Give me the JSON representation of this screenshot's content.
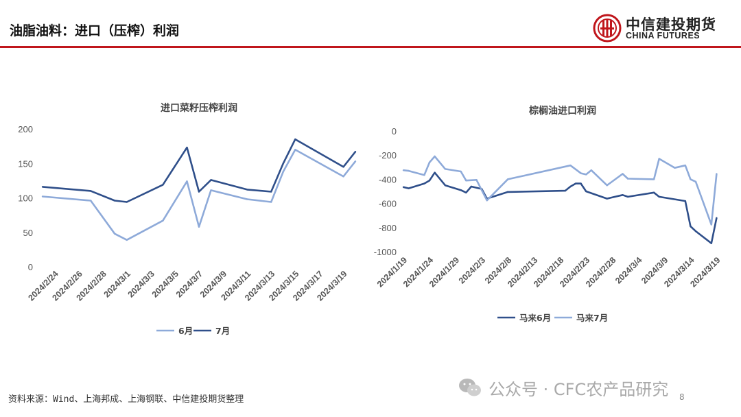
{
  "header": {
    "title": "油脂油料：进口（压榨）利润"
  },
  "logo": {
    "cn": "中信建投期货",
    "en": "CHINA FUTURES"
  },
  "footer": {
    "source": "资料来源：Wind、上海邦成、上海钢联、中信建投期货整理",
    "page": "8"
  },
  "watermark": {
    "text": "公众号 · CFC农产品研究",
    "icon": "wechat-icon"
  },
  "colors": {
    "accent": "#c0161c",
    "dark_series": "#2f4f8a",
    "light_series": "#8eaad9"
  },
  "chart_data": [
    {
      "type": "line",
      "title": "进口菜籽压榨利润",
      "ylim": [
        0,
        200
      ],
      "yticks": [
        0,
        50,
        100,
        150,
        200
      ],
      "xlim": [
        "2024/2/23",
        "2024/3/20"
      ],
      "xticks": [
        "2024/2/24",
        "2024/2/26",
        "2024/2/28",
        "2024/3/1",
        "2024/3/3",
        "2024/3/5",
        "2024/3/7",
        "2024/3/9",
        "2024/3/11",
        "2024/3/13",
        "2024/3/15",
        "2024/3/17",
        "2024/3/19"
      ],
      "legend_position": "bottom",
      "series": [
        {
          "name": "6月",
          "color": "#8eaad9",
          "points": [
            [
              "2024/2/23",
              102
            ],
            [
              "2024/2/27",
              96
            ],
            [
              "2024/2/29",
              48
            ],
            [
              "2024/3/1",
              39
            ],
            [
              "2024/3/4",
              67
            ],
            [
              "2024/3/6",
              124
            ],
            [
              "2024/3/7",
              58
            ],
            [
              "2024/3/8",
              111
            ],
            [
              "2024/3/11",
              98
            ],
            [
              "2024/3/13",
              94
            ],
            [
              "2024/3/14",
              138
            ],
            [
              "2024/3/15",
              170
            ],
            [
              "2024/3/19",
              131
            ],
            [
              "2024/3/20",
              153
            ]
          ]
        },
        {
          "name": "7月",
          "color": "#2f4f8a",
          "points": [
            [
              "2024/2/23",
              116
            ],
            [
              "2024/2/27",
              110
            ],
            [
              "2024/2/29",
              96
            ],
            [
              "2024/3/1",
              94
            ],
            [
              "2024/3/4",
              119
            ],
            [
              "2024/3/6",
              173
            ],
            [
              "2024/3/7",
              109
            ],
            [
              "2024/3/8",
              126
            ],
            [
              "2024/3/11",
              112
            ],
            [
              "2024/3/13",
              109
            ],
            [
              "2024/3/14",
              150
            ],
            [
              "2024/3/15",
              185
            ],
            [
              "2024/3/19",
              145
            ],
            [
              "2024/3/20",
              167
            ]
          ]
        }
      ]
    },
    {
      "type": "line",
      "title": "棕榈油进口利润",
      "ylim": [
        -1000,
        0
      ],
      "yticks": [
        0,
        -200,
        -400,
        -600,
        -800,
        -1000
      ],
      "xlim": [
        "2024/1/19",
        "2024/3/20"
      ],
      "xticks": [
        "2024/1/19",
        "2024/1/24",
        "2024/1/29",
        "2024/2/3",
        "2024/2/8",
        "2024/2/13",
        "2024/2/18",
        "2024/2/23",
        "2024/2/28",
        "2024/3/4",
        "2024/3/9",
        "2024/3/14",
        "2024/3/19"
      ],
      "legend_position": "bottom",
      "series": [
        {
          "name": "马来6月",
          "color": "#2f4f8a",
          "points": [
            [
              "2024/1/19",
              -465
            ],
            [
              "2024/1/20",
              -475
            ],
            [
              "2024/1/23",
              -435
            ],
            [
              "2024/1/24",
              -410
            ],
            [
              "2024/1/25",
              -345
            ],
            [
              "2024/1/27",
              -450
            ],
            [
              "2024/1/30",
              -490
            ],
            [
              "2024/1/31",
              -510
            ],
            [
              "2024/2/1",
              -460
            ],
            [
              "2024/2/3",
              -480
            ],
            [
              "2024/2/4",
              -560
            ],
            [
              "2024/2/8",
              -505
            ],
            [
              "2024/2/19",
              -495
            ],
            [
              "2024/2/20",
              -460
            ],
            [
              "2024/2/21",
              -435
            ],
            [
              "2024/2/22",
              -435
            ],
            [
              "2024/2/23",
              -500
            ],
            [
              "2024/2/27",
              -560
            ],
            [
              "2024/3/1",
              -530
            ],
            [
              "2024/3/2",
              -545
            ],
            [
              "2024/3/7",
              -510
            ],
            [
              "2024/3/8",
              -545
            ],
            [
              "2024/3/13",
              -580
            ],
            [
              "2024/3/14",
              -790
            ],
            [
              "2024/3/15",
              -830
            ],
            [
              "2024/3/18",
              -930
            ],
            [
              "2024/3/19",
              -720
            ]
          ]
        },
        {
          "name": "马来7月",
          "color": "#8eaad9",
          "points": [
            [
              "2024/1/19",
              -325
            ],
            [
              "2024/1/20",
              -330
            ],
            [
              "2024/1/23",
              -365
            ],
            [
              "2024/1/24",
              -260
            ],
            [
              "2024/1/25",
              -210
            ],
            [
              "2024/1/27",
              -315
            ],
            [
              "2024/1/30",
              -335
            ],
            [
              "2024/1/31",
              -410
            ],
            [
              "2024/2/2",
              -405
            ],
            [
              "2024/2/4",
              -575
            ],
            [
              "2024/2/8",
              -400
            ],
            [
              "2024/2/20",
              -285
            ],
            [
              "2024/2/22",
              -350
            ],
            [
              "2024/2/23",
              -360
            ],
            [
              "2024/2/24",
              -325
            ],
            [
              "2024/2/27",
              -450
            ],
            [
              "2024/3/1",
              -355
            ],
            [
              "2024/3/2",
              -395
            ],
            [
              "2024/3/7",
              -400
            ],
            [
              "2024/3/8",
              -230
            ],
            [
              "2024/3/11",
              -305
            ],
            [
              "2024/3/13",
              -285
            ],
            [
              "2024/3/14",
              -400
            ],
            [
              "2024/3/15",
              -420
            ],
            [
              "2024/3/18",
              -775
            ],
            [
              "2024/3/19",
              -355
            ]
          ]
        }
      ]
    }
  ]
}
